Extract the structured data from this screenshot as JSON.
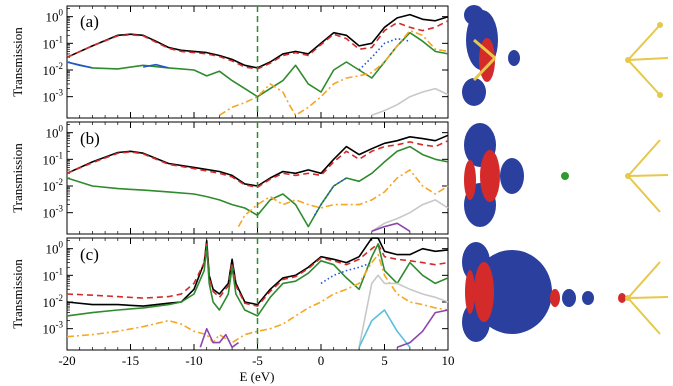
{
  "chart_data": [
    {
      "type": "line",
      "panel_label": "(a)",
      "ylabel": "Transmission",
      "xlabel": "",
      "xlim": [
        -20,
        10
      ],
      "ylim_log10": [
        -3.8,
        0.4
      ],
      "y_scale": "log",
      "y_ticks": [
        {
          "base": "10",
          "exp": "0",
          "value": 1
        },
        {
          "base": "10",
          "exp": "-1",
          "value": 0.1
        },
        {
          "base": "10",
          "exp": "-2",
          "value": 0.01
        },
        {
          "base": "10",
          "exp": "-3",
          "value": 0.001
        }
      ],
      "vline_x": -5,
      "series": [
        {
          "color": "#000000",
          "style": "solid",
          "x": [
            -20,
            -18,
            -16,
            -15,
            -14,
            -13,
            -12,
            -11,
            -10,
            -9,
            -8,
            -7,
            -6,
            -5,
            -4,
            -3,
            -2,
            -1,
            0,
            1,
            2,
            3,
            4,
            5,
            6,
            7,
            8,
            9,
            10
          ],
          "y": [
            0.03,
            0.08,
            0.2,
            0.22,
            0.2,
            0.12,
            0.07,
            0.055,
            0.05,
            0.045,
            0.035,
            0.025,
            0.015,
            0.012,
            0.02,
            0.04,
            0.05,
            0.04,
            0.1,
            0.25,
            0.2,
            0.08,
            0.1,
            0.4,
            0.9,
            1.2,
            0.8,
            0.7,
            1.0
          ]
        },
        {
          "color": "#d42a2a",
          "style": "dash",
          "x": [
            -20,
            -18,
            -16,
            -15,
            -14,
            -13,
            -12,
            -11,
            -10,
            -9,
            -8,
            -7,
            -6,
            -5,
            -4,
            -3,
            -2,
            -1,
            0,
            1,
            2,
            3,
            4,
            5,
            6,
            7,
            8,
            9,
            10
          ],
          "y": [
            0.03,
            0.08,
            0.19,
            0.21,
            0.19,
            0.11,
            0.065,
            0.05,
            0.045,
            0.04,
            0.032,
            0.022,
            0.013,
            0.011,
            0.018,
            0.035,
            0.045,
            0.035,
            0.09,
            0.22,
            0.15,
            0.06,
            0.07,
            0.3,
            0.6,
            0.4,
            0.3,
            0.4,
            0.7
          ]
        },
        {
          "color": "#2e8b2e",
          "style": "solid",
          "x": [
            -20,
            -18,
            -16,
            -14,
            -12,
            -11,
            -10,
            -9,
            -8,
            -7,
            -6,
            -5,
            -4,
            -3,
            -2,
            -1,
            0,
            1,
            2,
            3,
            4,
            5,
            6,
            7,
            8,
            9,
            10
          ],
          "y": [
            0.02,
            0.012,
            0.011,
            0.015,
            0.012,
            0.011,
            0.01,
            0.006,
            0.009,
            0.004,
            0.002,
            0.001,
            0.002,
            0.004,
            0.015,
            0.003,
            0.0015,
            0.01,
            0.02,
            0.01,
            0.005,
            0.02,
            0.08,
            0.25,
            0.12,
            0.05,
            0.04
          ]
        },
        {
          "color": "#f5a623",
          "style": "dashdot",
          "x": [
            -8,
            -7,
            -6,
            -5,
            -4,
            -3,
            -2.5,
            -2,
            -1,
            0,
            1,
            2,
            3,
            4,
            5,
            6,
            7,
            8,
            9,
            10
          ],
          "y": [
            0.0002,
            0.0004,
            0.0006,
            0.001,
            0.003,
            0.0015,
            0.0005,
            0.0002,
            0.0004,
            0.001,
            0.003,
            0.005,
            0.006,
            0.008,
            0.02,
            0.08,
            0.3,
            0.2,
            0.06,
            0.05
          ]
        },
        {
          "color": "#2255cc",
          "style": "solid",
          "x": [
            -20,
            -19,
            -18
          ],
          "y": [
            0.02,
            0.015,
            0.012
          ]
        },
        {
          "color": "#2255cc",
          "style": "solid",
          "x": [
            -14,
            -13,
            -12
          ],
          "y": [
            0.013,
            0.016,
            0.012
          ]
        },
        {
          "color": "#2255cc",
          "style": "dot",
          "x": [
            3,
            4,
            5,
            6,
            7
          ],
          "y": [
            0.01,
            0.03,
            0.1,
            0.15,
            0.12
          ]
        },
        {
          "color": "#c8c8c8",
          "style": "solid",
          "x": [
            4,
            5,
            6,
            7,
            8,
            9,
            10
          ],
          "y": [
            0.0002,
            0.0003,
            0.0005,
            0.001,
            0.0015,
            0.002,
            0.0012
          ]
        }
      ]
    },
    {
      "type": "line",
      "panel_label": "(b)",
      "ylabel": "Transmission",
      "xlabel": "",
      "xlim": [
        -20,
        10
      ],
      "ylim_log10": [
        -3.8,
        0.4
      ],
      "y_scale": "log",
      "y_ticks": [
        {
          "base": "10",
          "exp": "0",
          "value": 1
        },
        {
          "base": "10",
          "exp": "-1",
          "value": 0.1
        },
        {
          "base": "10",
          "exp": "-2",
          "value": 0.01
        },
        {
          "base": "10",
          "exp": "-3",
          "value": 0.001
        }
      ],
      "vline_x": -5,
      "series": [
        {
          "color": "#000000",
          "style": "solid",
          "x": [
            -20,
            -18,
            -16,
            -15,
            -14,
            -12,
            -10,
            -8,
            -7,
            -6,
            -5,
            -4,
            -3,
            -2,
            -1,
            0,
            1,
            2,
            3,
            4,
            5,
            6,
            7,
            8,
            9,
            10
          ],
          "y": [
            0.03,
            0.08,
            0.18,
            0.2,
            0.17,
            0.07,
            0.05,
            0.035,
            0.025,
            0.012,
            0.01,
            0.02,
            0.035,
            0.03,
            0.04,
            0.03,
            0.1,
            0.3,
            0.15,
            0.25,
            0.4,
            0.5,
            0.7,
            0.6,
            0.5,
            0.8
          ]
        },
        {
          "color": "#d42a2a",
          "style": "dash",
          "x": [
            -20,
            -18,
            -16,
            -15,
            -14,
            -12,
            -10,
            -8,
            -7,
            -6,
            -5,
            -4,
            -3,
            -2,
            -1,
            0,
            1,
            2,
            3,
            4,
            5,
            6,
            7,
            8,
            9,
            10
          ],
          "y": [
            0.03,
            0.075,
            0.17,
            0.19,
            0.16,
            0.065,
            0.045,
            0.03,
            0.022,
            0.011,
            0.009,
            0.018,
            0.03,
            0.025,
            0.03,
            0.025,
            0.08,
            0.2,
            0.1,
            0.2,
            0.3,
            0.35,
            0.45,
            0.35,
            0.3,
            0.5
          ]
        },
        {
          "color": "#2e8b2e",
          "style": "solid",
          "x": [
            -20,
            -18,
            -16,
            -14,
            -12,
            -10,
            -9,
            -8,
            -7,
            -6,
            -5,
            -4,
            -3,
            -2,
            -1,
            0,
            1,
            2,
            3,
            4,
            5,
            6,
            7,
            8,
            9,
            10
          ],
          "y": [
            0.02,
            0.01,
            0.008,
            0.007,
            0.006,
            0.005,
            0.004,
            0.003,
            0.002,
            0.0015,
            0.0008,
            0.003,
            0.005,
            0.002,
            0.0003,
            0.002,
            0.01,
            0.02,
            0.015,
            0.03,
            0.08,
            0.2,
            0.3,
            0.15,
            0.1,
            0.08
          ]
        },
        {
          "color": "#f5a623",
          "style": "dashdot",
          "x": [
            -6.5,
            -6,
            -5,
            -4,
            -3,
            -2,
            -1,
            0,
            1,
            2,
            3,
            4,
            5,
            6,
            7,
            8,
            9,
            10
          ],
          "y": [
            0.0003,
            0.0008,
            0.002,
            0.004,
            0.002,
            0.003,
            0.002,
            0.0015,
            0.002,
            0.002,
            0.002,
            0.003,
            0.006,
            0.02,
            0.04,
            0.01,
            0.005,
            0.01
          ]
        },
        {
          "color": "#2255cc",
          "style": "dot",
          "x": [
            -0.5,
            0,
            1,
            2
          ],
          "y": [
            0.0008,
            0.002,
            0.01,
            0.02
          ]
        },
        {
          "color": "#c8c8c8",
          "style": "solid",
          "x": [
            4,
            5,
            6,
            7,
            8,
            9,
            10
          ],
          "y": [
            0.0002,
            0.0004,
            0.0006,
            0.001,
            0.002,
            0.003,
            0.0015
          ]
        },
        {
          "color": "#8e44ad",
          "style": "solid",
          "x": [
            4,
            5,
            6,
            7
          ],
          "y": [
            0.0002,
            0.0003,
            0.0004,
            0.0002
          ]
        }
      ]
    },
    {
      "type": "line",
      "panel_label": "(c)",
      "ylabel": "Transmission",
      "xlabel": "E (eV)",
      "xlim": [
        -20,
        10
      ],
      "ylim_log10": [
        -3.8,
        0.4
      ],
      "y_scale": "log",
      "x_ticks": [
        "-20",
        "-15",
        "-10",
        "-5",
        "0",
        "5",
        "10"
      ],
      "x_tick_values": [
        -20,
        -15,
        -10,
        -5,
        0,
        5,
        10
      ],
      "y_ticks": [
        {
          "base": "10",
          "exp": "0",
          "value": 1
        },
        {
          "base": "10",
          "exp": "-1",
          "value": 0.1
        },
        {
          "base": "10",
          "exp": "-2",
          "value": 0.01
        },
        {
          "base": "10",
          "exp": "-3",
          "value": 0.001
        }
      ],
      "vline_x": -5,
      "series": [
        {
          "color": "#000000",
          "style": "solid",
          "x": [
            -20,
            -18,
            -16,
            -14,
            -12,
            -11,
            -10,
            -9.2,
            -9,
            -8.8,
            -8.5,
            -8,
            -7.3,
            -7,
            -6.7,
            -6,
            -5,
            -4,
            -3,
            -2,
            -1,
            0,
            1,
            2,
            3,
            4,
            4.5,
            5,
            6,
            7,
            8,
            9,
            10
          ],
          "y": [
            0.01,
            0.008,
            0.008,
            0.007,
            0.009,
            0.01,
            0.03,
            0.3,
            2.0,
            0.1,
            0.03,
            0.02,
            0.05,
            0.4,
            0.05,
            0.01,
            0.008,
            0.03,
            0.08,
            0.1,
            0.2,
            0.5,
            0.4,
            0.3,
            0.5,
            2.5,
            2.5,
            0.8,
            0.6,
            0.6,
            1.0,
            0.8,
            0.9
          ]
        },
        {
          "color": "#d42a2a",
          "style": "dash",
          "x": [
            -20,
            -18,
            -16,
            -14,
            -12,
            -11,
            -10,
            -9.2,
            -9,
            -8.8,
            -8.5,
            -8,
            -7.3,
            -7,
            -6.7,
            -6,
            -5,
            -4,
            -3,
            -2,
            -1,
            0,
            1,
            2,
            3,
            4,
            4.5,
            5,
            6,
            7,
            8,
            9,
            10
          ],
          "y": [
            0.02,
            0.018,
            0.016,
            0.014,
            0.016,
            0.02,
            0.05,
            0.3,
            1.5,
            0.08,
            0.025,
            0.015,
            0.04,
            0.3,
            0.04,
            0.009,
            0.007,
            0.025,
            0.07,
            0.09,
            0.18,
            0.45,
            0.35,
            0.25,
            0.4,
            1.0,
            1.5,
            0.5,
            0.4,
            0.35,
            0.3,
            0.25,
            0.3
          ]
        },
        {
          "color": "#2e8b2e",
          "style": "solid",
          "x": [
            -20,
            -18,
            -16,
            -14,
            -12,
            -11,
            -10,
            -9.2,
            -9,
            -8.8,
            -8.5,
            -8,
            -7.3,
            -7,
            -6.7,
            -6,
            -5,
            -4,
            -3,
            -2,
            -1,
            0,
            1,
            2,
            3,
            4,
            4.5,
            5,
            6,
            7,
            8,
            9,
            10
          ],
          "y": [
            0.003,
            0.004,
            0.005,
            0.006,
            0.008,
            0.01,
            0.02,
            0.15,
            1.2,
            0.05,
            0.01,
            0.005,
            0.02,
            0.2,
            0.02,
            0.005,
            0.003,
            0.015,
            0.05,
            0.06,
            0.12,
            0.35,
            0.25,
            0.08,
            0.03,
            0.5,
            1.5,
            0.15,
            0.05,
            0.3,
            0.1,
            0.05,
            0.08
          ]
        },
        {
          "color": "#f5a623",
          "style": "dashdot",
          "x": [
            -20,
            -18,
            -16,
            -14,
            -12,
            -11,
            -10,
            -9,
            -8.5,
            -8,
            -7,
            -6,
            -5,
            -4,
            -3,
            -2,
            -1,
            0,
            1,
            2,
            3,
            4,
            4.5,
            5,
            6,
            7,
            8,
            9,
            10
          ],
          "y": [
            0.0005,
            0.0006,
            0.0008,
            0.0012,
            0.002,
            0.0015,
            0.0008,
            0.0006,
            0.0003,
            0.0006,
            0.0003,
            0.0006,
            0.0008,
            0.001,
            0.0015,
            0.003,
            0.006,
            0.01,
            0.02,
            0.03,
            0.05,
            0.3,
            0.6,
            0.1,
            0.02,
            0.01,
            0.008,
            0.006,
            0.005
          ]
        },
        {
          "color": "#c8c8c8",
          "style": "solid",
          "x": [
            3,
            4,
            4.5,
            5,
            6,
            7,
            8,
            9,
            10
          ],
          "y": [
            0.0002,
            0.05,
            0.1,
            0.05,
            0.05,
            0.03,
            0.02,
            0.015,
            0.01
          ]
        },
        {
          "color": "#5bc0de",
          "style": "solid",
          "x": [
            3,
            4,
            5,
            6,
            7
          ],
          "y": [
            0.0002,
            0.002,
            0.005,
            0.0008,
            0.0002
          ]
        },
        {
          "color": "#8e44ad",
          "style": "solid",
          "x": [
            -9.5,
            -9,
            -8.5,
            -8,
            -7.5,
            -7,
            -6.5
          ],
          "y": [
            0.0002,
            0.001,
            0.0003,
            0.0003,
            0.0006,
            0.0002,
            0.0003
          ]
        },
        {
          "color": "#8e44ad",
          "style": "solid",
          "x": [
            6,
            7,
            8,
            9,
            10
          ],
          "y": [
            0.0002,
            0.0003,
            0.0008,
            0.004,
            0.005
          ]
        },
        {
          "color": "#2255cc",
          "style": "dot",
          "x": [
            0,
            1,
            2,
            3,
            4
          ],
          "y": [
            0.05,
            0.1,
            0.15,
            0.2,
            0.3
          ]
        }
      ]
    }
  ],
  "images": [
    {
      "caption": "orbital-isosurface-a"
    },
    {
      "caption": "orbital-isosurface-b"
    },
    {
      "caption": "orbital-isosurface-c"
    }
  ]
}
